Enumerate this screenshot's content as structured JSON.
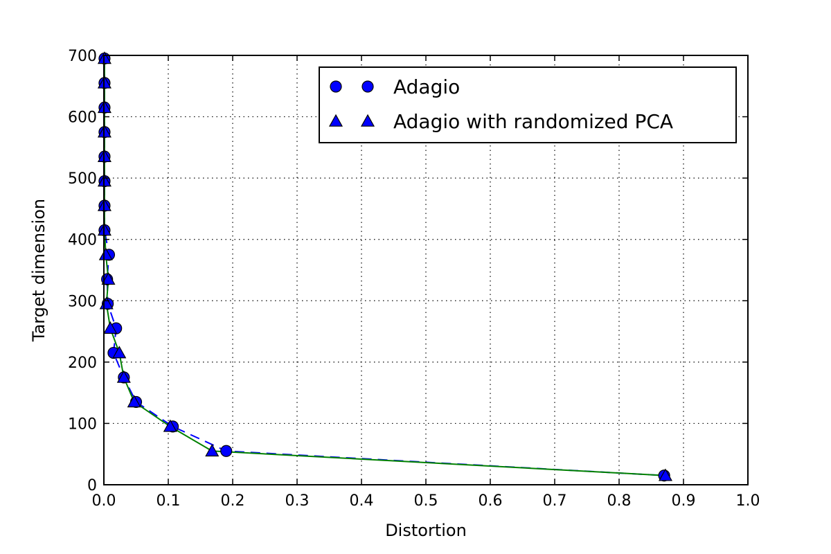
{
  "chart_data": {
    "type": "line",
    "title": "",
    "xlabel": "Distortion",
    "ylabel": "Target dimension",
    "xlim": [
      0.0,
      1.0
    ],
    "ylim": [
      0,
      700
    ],
    "xticks": [
      "0.0",
      "0.1",
      "0.2",
      "0.3",
      "0.4",
      "0.5",
      "0.6",
      "0.7",
      "0.8",
      "0.9",
      "1.0"
    ],
    "yticks": [
      "0",
      "100",
      "200",
      "300",
      "400",
      "500",
      "600",
      "700"
    ],
    "grid": true,
    "legend_position": "top-right",
    "colors": {
      "marker_fill": "#0000ff",
      "series1_line": "#0000ff",
      "series2_line": "#008000"
    },
    "series": [
      {
        "name": "Adagio",
        "marker": "circle",
        "line_style": "dashed",
        "x": [
          0.001,
          0.001,
          0.001,
          0.001,
          0.001,
          0.001,
          0.001,
          0.001,
          0.008,
          0.005,
          0.006,
          0.019,
          0.015,
          0.031,
          0.05,
          0.107,
          0.19,
          0.87
        ],
        "y": [
          695,
          655,
          615,
          575,
          535,
          495,
          455,
          415,
          375,
          335,
          295,
          255,
          215,
          175,
          135,
          95,
          55,
          15
        ]
      },
      {
        "name": "Adagio with randomized PCA",
        "marker": "triangle",
        "line_style": "solid",
        "x": [
          0.001,
          0.001,
          0.001,
          0.001,
          0.001,
          0.001,
          0.001,
          0.001,
          0.003,
          0.007,
          0.004,
          0.01,
          0.024,
          0.031,
          0.047,
          0.103,
          0.168,
          0.872
        ],
        "y": [
          695,
          655,
          615,
          575,
          535,
          495,
          455,
          415,
          375,
          335,
          295,
          255,
          215,
          175,
          135,
          95,
          55,
          15
        ]
      }
    ]
  }
}
